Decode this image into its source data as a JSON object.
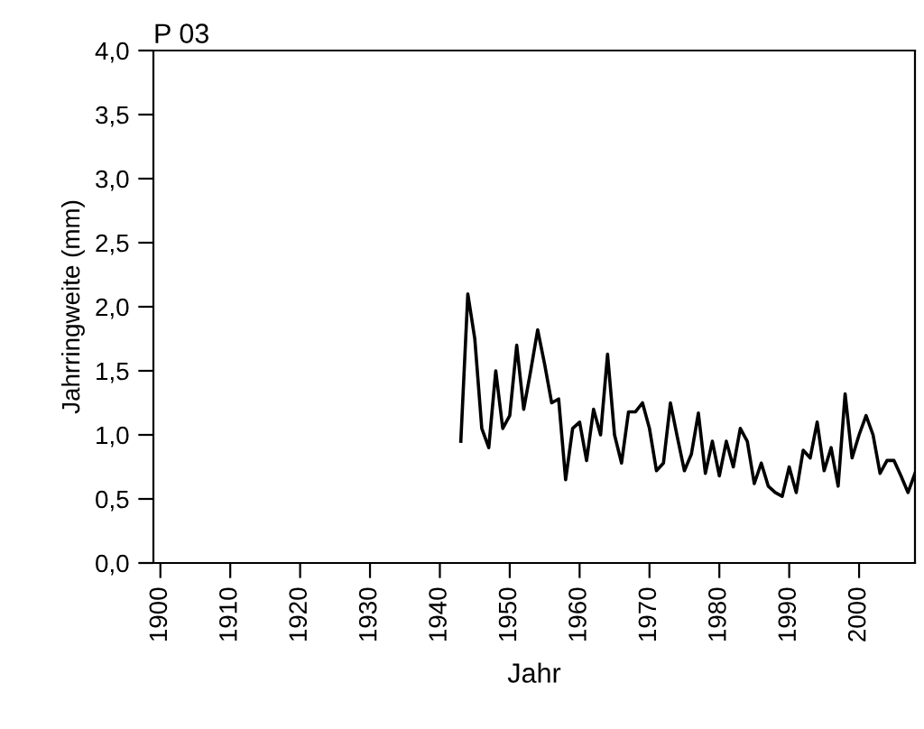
{
  "chart_data": {
    "type": "line",
    "title": "P 03",
    "xlabel": "Jahr",
    "ylabel": "Jahrringweite (mm)",
    "x": [
      1943,
      1944,
      1945,
      1946,
      1947,
      1948,
      1949,
      1950,
      1951,
      1952,
      1953,
      1954,
      1955,
      1956,
      1957,
      1958,
      1959,
      1960,
      1961,
      1962,
      1963,
      1964,
      1965,
      1966,
      1967,
      1968,
      1969,
      1970,
      1971,
      1972,
      1973,
      1974,
      1975,
      1976,
      1977,
      1978,
      1979,
      1980,
      1981,
      1982,
      1983,
      1984,
      1985,
      1986,
      1987,
      1988,
      1989,
      1990,
      1991,
      1992,
      1993,
      1994,
      1995,
      1996,
      1997,
      1998,
      1999,
      2000,
      2001,
      2002,
      2003,
      2004,
      2005,
      2006,
      2007,
      2008
    ],
    "series": [
      {
        "color": "#000000",
        "values": [
          0.95,
          2.1,
          1.75,
          1.05,
          0.9,
          1.5,
          1.05,
          1.15,
          1.7,
          1.2,
          1.5,
          1.82,
          1.55,
          1.25,
          1.28,
          0.65,
          1.05,
          1.1,
          0.8,
          1.2,
          1.0,
          1.63,
          1.0,
          0.78,
          1.18,
          1.18,
          1.25,
          1.05,
          0.72,
          0.78,
          1.25,
          0.98,
          0.72,
          0.85,
          1.17,
          0.7,
          0.95,
          0.68,
          0.95,
          0.75,
          1.05,
          0.95,
          0.62,
          0.78,
          0.6,
          0.55,
          0.52,
          0.75,
          0.55,
          0.88,
          0.82,
          1.1,
          0.72,
          0.9,
          0.6,
          1.32,
          0.82,
          1.0,
          1.15,
          1.0,
          0.7,
          0.8,
          0.8,
          0.68,
          0.55,
          0.7
        ]
      }
    ],
    "xlim": [
      1899,
      2008
    ],
    "xticks": [
      1900,
      1910,
      1920,
      1930,
      1940,
      1950,
      1960,
      1970,
      1980,
      1990,
      2000
    ],
    "ylim": [
      0,
      4
    ],
    "yticks": [
      {
        "value": 0,
        "label": "0,0"
      },
      {
        "value": 0.5,
        "label": "0,5"
      },
      {
        "value": 1,
        "label": "1,0"
      },
      {
        "value": 1.5,
        "label": "1,5"
      },
      {
        "value": 2,
        "label": "2,0"
      },
      {
        "value": 2.5,
        "label": "2,5"
      },
      {
        "value": 3,
        "label": "3,0"
      },
      {
        "value": 3.5,
        "label": "3,5"
      },
      {
        "value": 4,
        "label": "4,0"
      }
    ],
    "grid": false,
    "legend": false,
    "marker": "none",
    "line_style": "solid"
  }
}
